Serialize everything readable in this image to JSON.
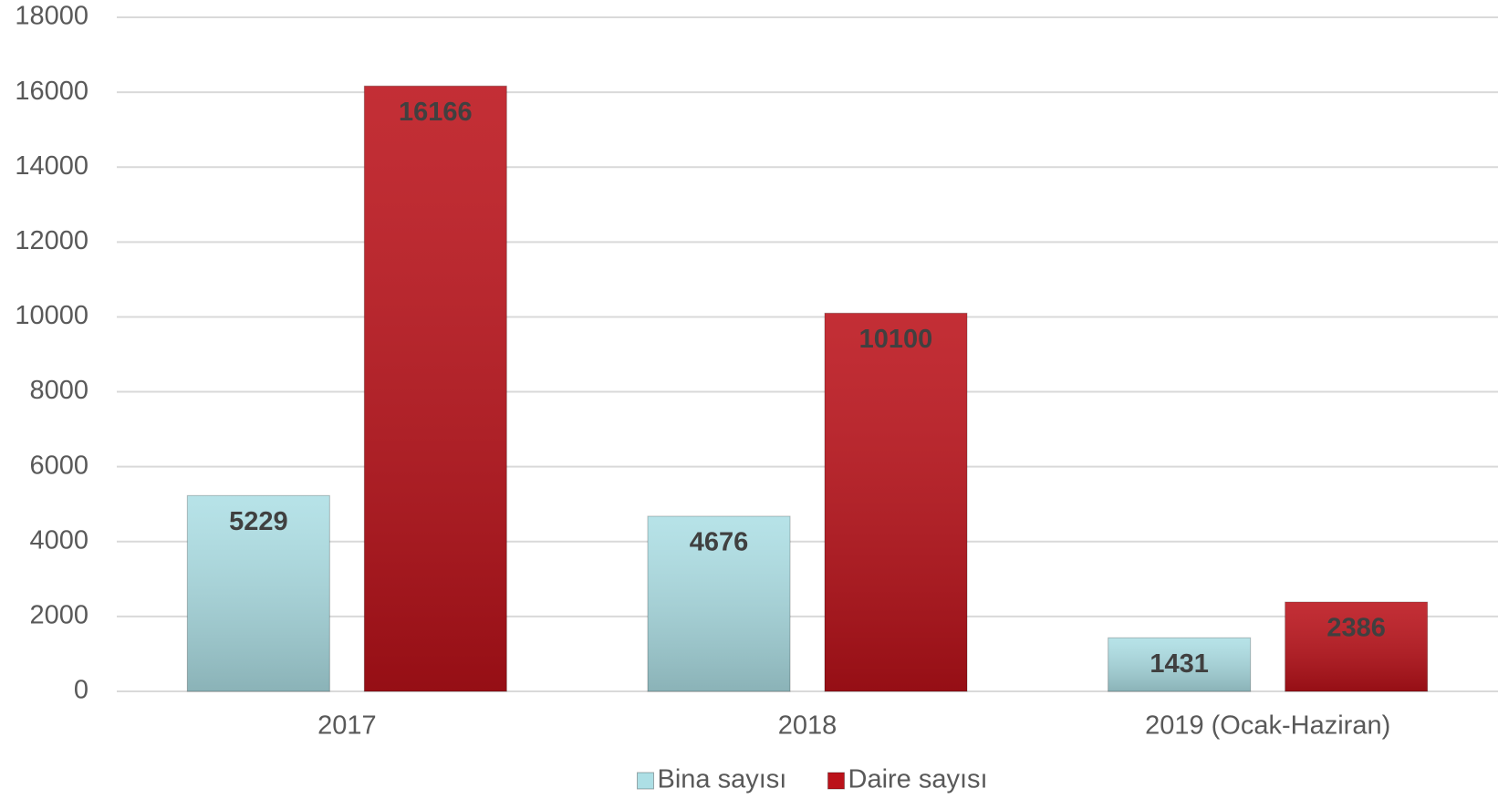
{
  "chart_data": {
    "type": "bar",
    "categories": [
      "2017",
      "2018",
      "2019 (Ocak-Haziran)"
    ],
    "series": [
      {
        "name": "Bina sayısı",
        "color": "#addfe5",
        "values": [
          5229,
          4676,
          1431
        ]
      },
      {
        "name": "Daire sayısı",
        "color": "#bb121a",
        "values": [
          16166,
          10100,
          2386
        ]
      }
    ],
    "ylim": [
      0,
      18000
    ],
    "yticks": [
      0,
      2000,
      4000,
      6000,
      8000,
      10000,
      12000,
      14000,
      16000,
      18000
    ],
    "grid": true,
    "legend": "bottom"
  }
}
